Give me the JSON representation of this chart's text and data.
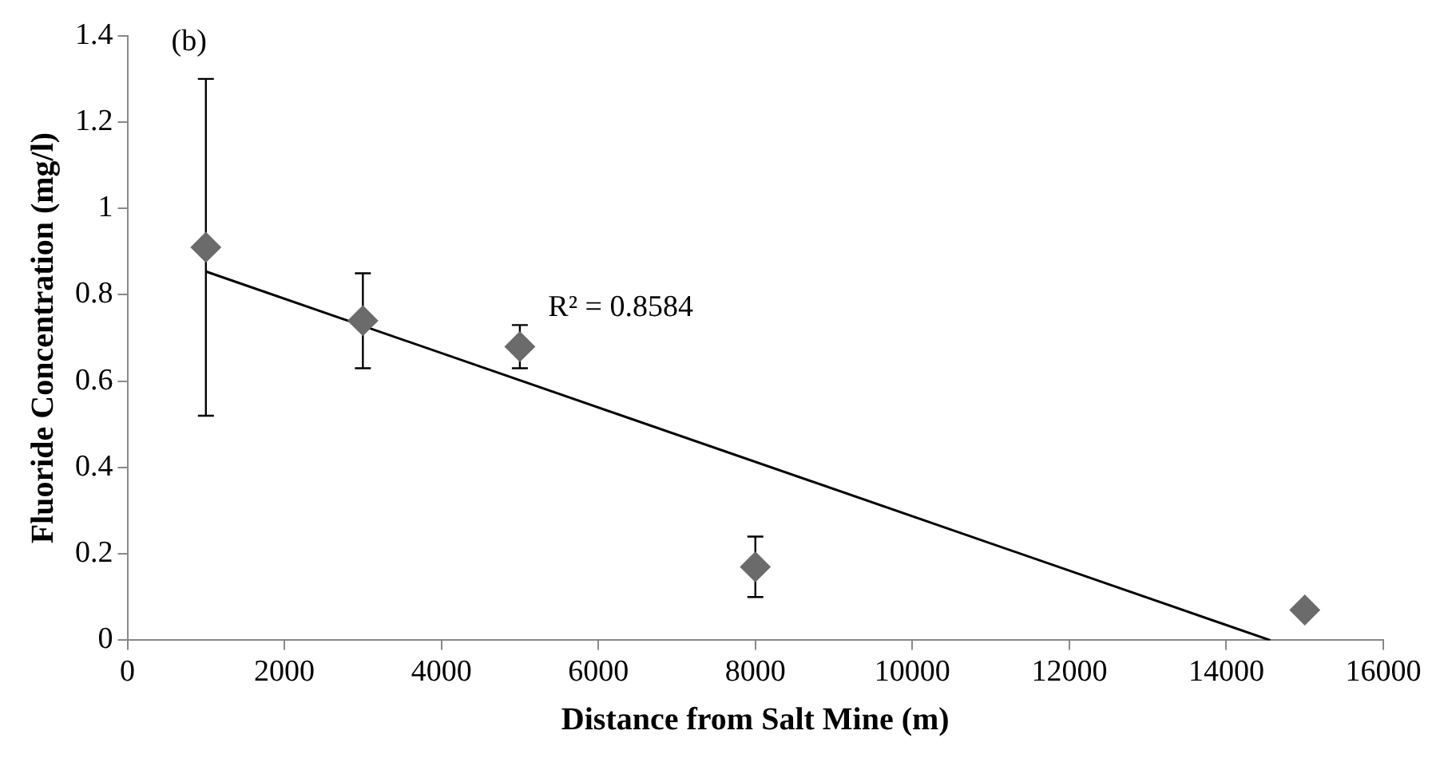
{
  "chart_data": {
    "type": "scatter",
    "xlabel": "Distance from Salt Mine (m)",
    "ylabel": "Fluoride Concentration (mg/l)",
    "annotations": [
      "(b)",
      "R² = 0.8584"
    ],
    "xlim": [
      0,
      16000
    ],
    "xticks": [
      0,
      2000,
      4000,
      6000,
      8000,
      10000,
      12000,
      14000,
      16000
    ],
    "ylim": [
      0,
      1.4
    ],
    "yticks": [
      0,
      0.2,
      0.4,
      0.6,
      0.8,
      1,
      1.2,
      1.4
    ],
    "grid": false,
    "legend": false,
    "series": [
      {
        "type": "scatter",
        "color": "#6b6b6b",
        "marker": "diamond",
        "x": [
          1000,
          3000,
          5000,
          8000,
          15000
        ],
        "values": [
          0.91,
          0.74,
          0.68,
          0.17,
          0.07
        ],
        "errors": [
          [
            0.52,
            1.3
          ],
          [
            0.63,
            0.85
          ],
          [
            0.63,
            0.73
          ],
          [
            0.1,
            0.24
          ],
          null
        ]
      },
      {
        "type": "line",
        "color": "#000000",
        "marker": "none",
        "line_style": "solid",
        "x": [
          1000,
          14560
        ],
        "values": [
          0.854,
          0
        ]
      }
    ]
  }
}
